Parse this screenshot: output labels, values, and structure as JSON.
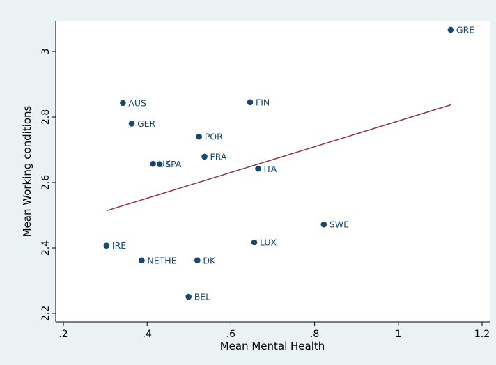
{
  "chart_data": {
    "type": "scatter",
    "xlabel": "Mean Mental Health",
    "ylabel": "Mean Working conditions",
    "xlim": [
      0.2,
      1.2
    ],
    "ylim": [
      2.2,
      3.08
    ],
    "xticks": [
      0.2,
      0.4,
      0.6,
      0.8,
      1.0,
      1.2
    ],
    "xtick_labels": [
      ".2",
      ".4",
      ".6",
      ".8",
      "1",
      "1.2"
    ],
    "yticks": [
      2.2,
      2.4,
      2.6,
      2.8,
      3.0
    ],
    "ytick_labels": [
      "2.2",
      "2.4",
      "2.6",
      "2.8",
      "3"
    ],
    "grid": false,
    "colors": {
      "marker": "#1a476f",
      "fit_line": "#90353b",
      "background": "#eaf2f3",
      "plot_area": "#ffffff"
    },
    "points": [
      {
        "label": "GRE",
        "x": 1.125,
        "y": 3.066
      },
      {
        "label": "AUS",
        "x": 0.342,
        "y": 2.843
      },
      {
        "label": "FIN",
        "x": 0.646,
        "y": 2.845
      },
      {
        "label": "GER",
        "x": 0.363,
        "y": 2.78
      },
      {
        "label": "POR",
        "x": 0.524,
        "y": 2.74
      },
      {
        "label": "FRA",
        "x": 0.537,
        "y": 2.679
      },
      {
        "label": "UK",
        "x": 0.414,
        "y": 2.657
      },
      {
        "label": "SPA",
        "x": 0.43,
        "y": 2.656
      },
      {
        "label": "ITA",
        "x": 0.665,
        "y": 2.642
      },
      {
        "label": "SWE",
        "x": 0.822,
        "y": 2.472
      },
      {
        "label": "LUX",
        "x": 0.656,
        "y": 2.417
      },
      {
        "label": "IRE",
        "x": 0.303,
        "y": 2.407
      },
      {
        "label": "NETHE",
        "x": 0.387,
        "y": 2.362
      },
      {
        "label": "DK",
        "x": 0.52,
        "y": 2.362
      },
      {
        "label": "BEL",
        "x": 0.499,
        "y": 2.251
      }
    ],
    "fit_line": {
      "x": [
        0.303,
        1.125
      ],
      "y": [
        2.514,
        2.837
      ]
    }
  }
}
